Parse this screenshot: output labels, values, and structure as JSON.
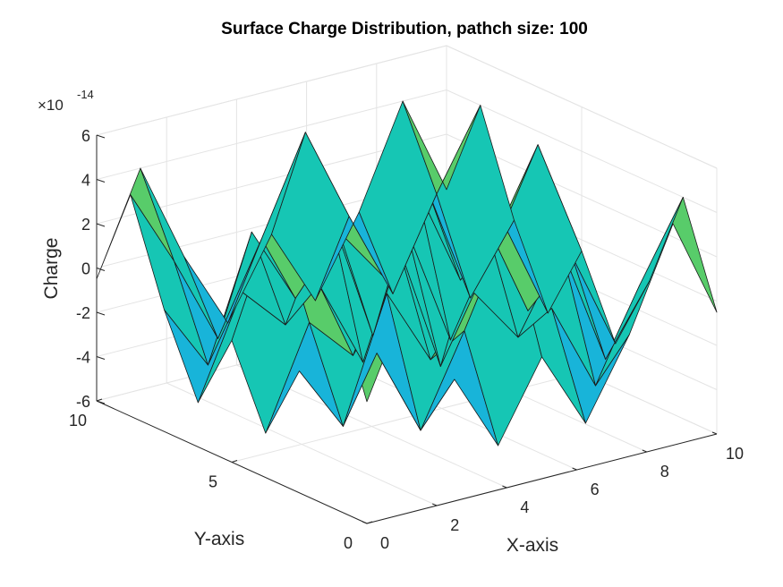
{
  "chart_data": {
    "type": "surface",
    "title": "Surface Charge Distribution, pathch size: 100",
    "xlabel": "X-axis",
    "ylabel": "Y-axis",
    "zlabel": "Charge",
    "z_exponent_base": "×10",
    "z_exponent_power": "-14",
    "xlim": [
      0,
      10
    ],
    "ylim": [
      0,
      10
    ],
    "zlim": [
      -6,
      6
    ],
    "x_ticks": [
      "0",
      "2",
      "4",
      "6",
      "8",
      "10"
    ],
    "y_ticks": [
      "0",
      "5",
      "10"
    ],
    "z_ticks": [
      "6",
      "4",
      "2",
      "0",
      "-2",
      "-4",
      "-6"
    ],
    "grid": true,
    "colormap": [
      "#3e26a8",
      "#4352f5",
      "#2f8ffd",
      "#18b4d9",
      "#16c6b4",
      "#58cc6a",
      "#b8c43b",
      "#e9bb2e",
      "#f9fb15"
    ],
    "x": [
      0,
      1.25,
      2.5,
      3.75,
      5,
      6.25,
      7.5,
      8.75,
      10
    ],
    "y": [
      0,
      1.25,
      2.5,
      3.75,
      5,
      6.25,
      7.5,
      8.75,
      10
    ],
    "z": [
      [
        -0.5,
        4.0,
        -0.5,
        -4.0,
        -0.5,
        -4.0,
        -0.5,
        4.0,
        -0.5
      ],
      [
        4.0,
        0.5,
        -3.5,
        0.5,
        4.8,
        0.5,
        -3.5,
        0.5,
        4.0
      ],
      [
        -0.5,
        -3.5,
        2.0,
        -1.5,
        1.0,
        -1.5,
        2.0,
        -3.5,
        -0.5
      ],
      [
        -4.0,
        0.5,
        -1.5,
        3.2,
        -3.0,
        3.2,
        -1.5,
        0.5,
        -4.0
      ],
      [
        -0.5,
        4.8,
        1.0,
        -3.0,
        2.5,
        -3.0,
        1.0,
        4.8,
        -0.5
      ],
      [
        -4.0,
        0.5,
        -1.5,
        3.2,
        -3.0,
        3.2,
        -1.5,
        0.5,
        -4.0
      ],
      [
        -0.5,
        -3.5,
        2.0,
        -1.5,
        1.0,
        -1.5,
        2.0,
        -3.5,
        -0.5
      ],
      [
        4.0,
        0.5,
        -3.5,
        0.5,
        4.8,
        0.5,
        -3.5,
        0.5,
        4.0
      ],
      [
        -0.5,
        4.0,
        -0.5,
        -4.0,
        -0.5,
        -4.0,
        -0.5,
        4.0,
        -0.5
      ]
    ]
  }
}
